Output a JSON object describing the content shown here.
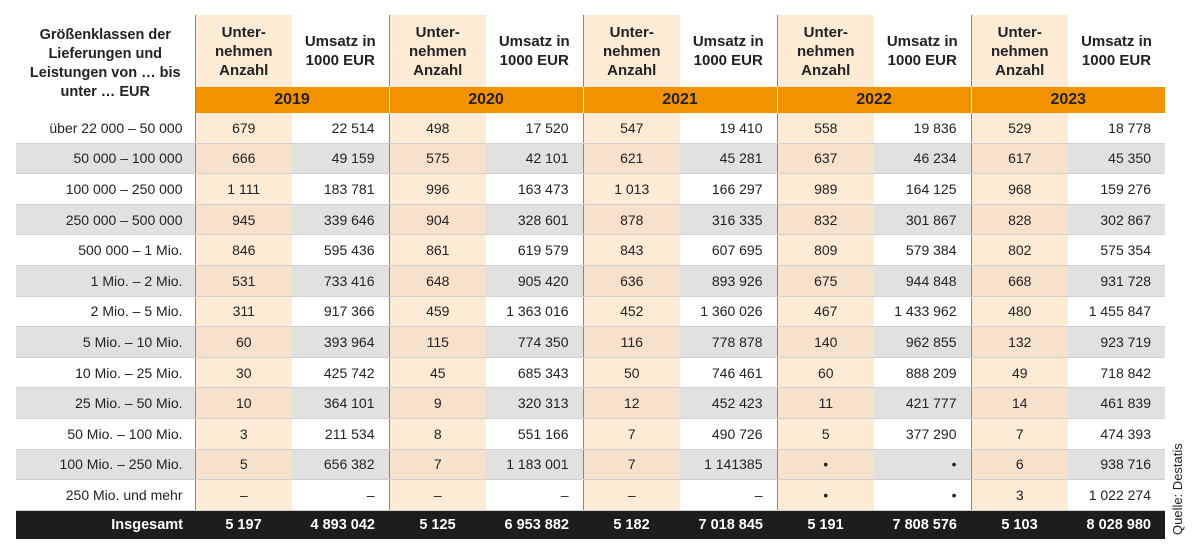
{
  "header": {
    "label": "Größenklassen der Lieferungen und Leistungen von … bis unter … EUR",
    "col_anzahl": "Unter-nehmen Anzahl",
    "col_umsatz": "Umsatz in 1000 EUR"
  },
  "years": [
    "2019",
    "2020",
    "2021",
    "2022",
    "2023"
  ],
  "rows": [
    {
      "label": "über 22 000 – 50 000",
      "cells": [
        "679",
        "22 514",
        "498",
        "17 520",
        "547",
        "19 410",
        "558",
        "19 836",
        "529",
        "18 778"
      ]
    },
    {
      "label": "50 000 – 100 000",
      "cells": [
        "666",
        "49 159",
        "575",
        "42 101",
        "621",
        "45 281",
        "637",
        "46 234",
        "617",
        "45 350"
      ]
    },
    {
      "label": "100 000 – 250 000",
      "cells": [
        "1 111",
        "183 781",
        "996",
        "163 473",
        "1 013",
        "166 297",
        "989",
        "164 125",
        "968",
        "159 276"
      ]
    },
    {
      "label": "250 000 – 500 000",
      "cells": [
        "945",
        "339 646",
        "904",
        "328 601",
        "878",
        "316 335",
        "832",
        "301 867",
        "828",
        "302 867"
      ]
    },
    {
      "label": "500 000 – 1 Mio.",
      "cells": [
        "846",
        "595 436",
        "861",
        "619 579",
        "843",
        "607 695",
        "809",
        "579 384",
        "802",
        "575 354"
      ]
    },
    {
      "label": "1 Mio. – 2 Mio.",
      "cells": [
        "531",
        "733 416",
        "648",
        "905 420",
        "636",
        "893 926",
        "675",
        "944 848",
        "668",
        "931 728"
      ]
    },
    {
      "label": "2 Mio. – 5 Mio.",
      "cells": [
        "311",
        "917 366",
        "459",
        "1 363 016",
        "452",
        "1 360 026",
        "467",
        "1 433 962",
        "480",
        "1 455 847"
      ]
    },
    {
      "label": "5 Mio. – 10 Mio.",
      "cells": [
        "60",
        "393 964",
        "115",
        "774 350",
        "116",
        "778 878",
        "140",
        "962 855",
        "132",
        "923 719"
      ]
    },
    {
      "label": "10 Mio. – 25 Mio.",
      "cells": [
        "30",
        "425 742",
        "45",
        "685 343",
        "50",
        "746 461",
        "60",
        "888 209",
        "49",
        "718 842"
      ]
    },
    {
      "label": "25 Mio. – 50 Mio.",
      "cells": [
        "10",
        "364 101",
        "9",
        "320 313",
        "12",
        "452 423",
        "11",
        "421 777",
        "14",
        "461 839"
      ]
    },
    {
      "label": "50 Mio. – 100 Mio.",
      "cells": [
        "3",
        "211 534",
        "8",
        "551 166",
        "7",
        "490 726",
        "5",
        "377 290",
        "7",
        "474 393"
      ]
    },
    {
      "label": "100 Mio. – 250 Mio.",
      "cells": [
        "5",
        "656 382",
        "7",
        "1 183 001",
        "7",
        "1 141385",
        "•",
        "•",
        "6",
        "938 716"
      ]
    },
    {
      "label": "250 Mio. und mehr",
      "cells": [
        "–",
        "–",
        "–",
        "–",
        "–",
        "–",
        "•",
        "•",
        "3",
        "1 022 274"
      ]
    }
  ],
  "total": {
    "label": "Insgesamt",
    "cells": [
      "5 197",
      "4 893 042",
      "5 125",
      "6 953 882",
      "5 182",
      "7 018 845",
      "5 191",
      "7 808 576",
      "5 103",
      "8 028 980"
    ]
  },
  "source": "Quelle: Destatis"
}
